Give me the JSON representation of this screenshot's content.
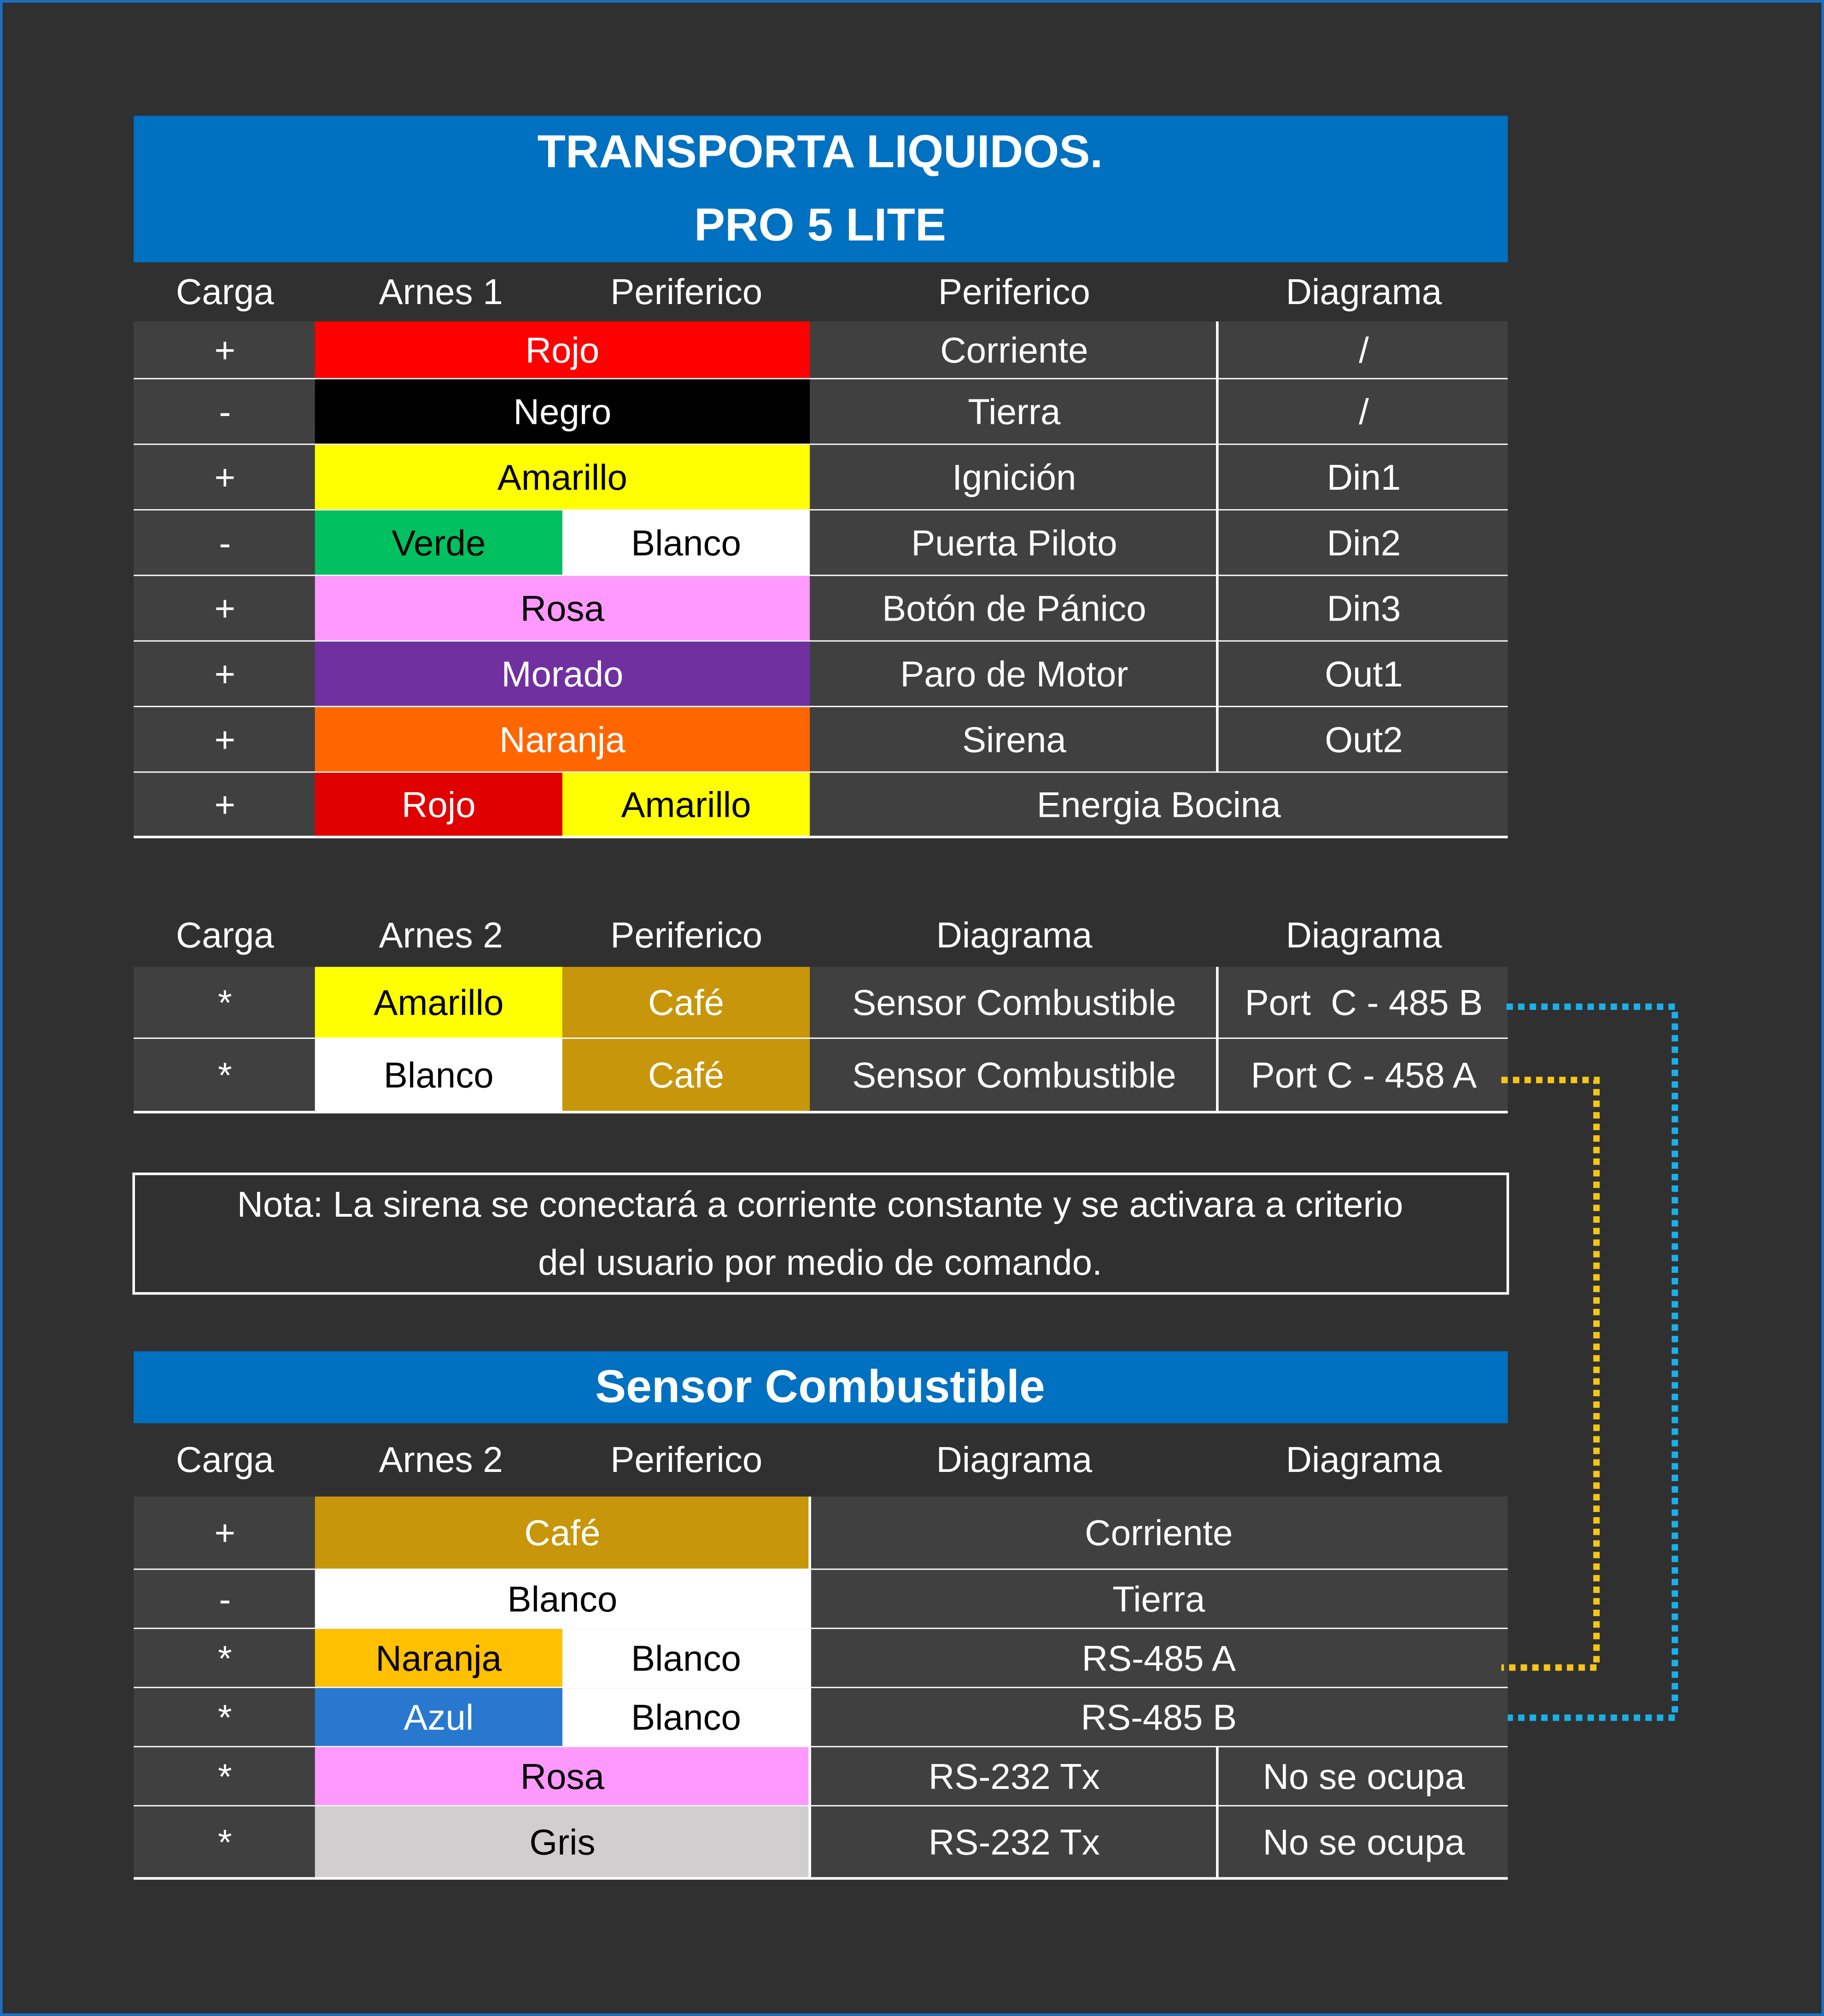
{
  "table1": {
    "title": [
      "TRANSPORTA LIQUIDOS.",
      "PRO 5 LITE"
    ],
    "header": [
      "Carga",
      "Arnes 1",
      "Periferico",
      "Periferico",
      "Diagrama"
    ],
    "rows": [
      {
        "carga": "+",
        "wires": [
          {
            "text": "Rojo",
            "color": "#ff0000",
            "text_color": "#ffffff"
          }
        ],
        "cells": [
          "Corriente",
          "/"
        ]
      },
      {
        "carga": "-",
        "wires": [
          {
            "text": "Negro",
            "color": "#000000",
            "text_color": "#ffffff"
          }
        ],
        "cells": [
          "Tierra",
          "/"
        ]
      },
      {
        "carga": "+",
        "wires": [
          {
            "text": "Amarillo",
            "color": "#ffff00",
            "text_color": "#000000"
          }
        ],
        "cells": [
          "Ignición",
          "Din1"
        ]
      },
      {
        "carga": "-",
        "wires": [
          {
            "text": "Verde",
            "color": "#00c060",
            "text_color": "#000000"
          },
          {
            "text": "Blanco",
            "color": "#ffffff",
            "text_color": "#000000"
          }
        ],
        "cells": [
          "Puerta Piloto",
          "Din2"
        ]
      },
      {
        "carga": "+",
        "wires": [
          {
            "text": "Rosa",
            "color": "#ff99ff",
            "text_color": "#000000"
          }
        ],
        "cells": [
          "Botón de Pánico",
          "Din3"
        ]
      },
      {
        "carga": "+",
        "wires": [
          {
            "text": "Morado",
            "color": "#7030a0",
            "text_color": "#ffffff"
          }
        ],
        "cells": [
          "Paro de Motor",
          "Out1"
        ]
      },
      {
        "carga": "+",
        "wires": [
          {
            "text": "Naranja",
            "color": "#ff6600",
            "text_color": "#ffffff"
          }
        ],
        "cells": [
          "Sirena",
          "Out2"
        ]
      },
      {
        "carga": "+",
        "wires": [
          {
            "text": "Rojo",
            "color": "#e00000",
            "text_color": "#ffffff"
          },
          {
            "text": "Amarillo",
            "color": "#ffff00",
            "text_color": "#000000"
          }
        ],
        "cells": [
          "Energia Bocina"
        ]
      }
    ]
  },
  "table2": {
    "header": [
      "Carga",
      "Arnes 2",
      "Periferico",
      "Diagrama",
      "Diagrama"
    ],
    "rows": [
      {
        "carga": "*",
        "wires": [
          {
            "text": "Amarillo",
            "color": "#ffff00",
            "text_color": "#000000"
          },
          {
            "text": "Café",
            "color": "#c8960a",
            "text_color": "#ffffff"
          }
        ],
        "cells": [
          "Sensor Combustible",
          "Port  C - 485 B"
        ]
      },
      {
        "carga": "*",
        "wires": [
          {
            "text": "Blanco",
            "color": "#ffffff",
            "text_color": "#000000"
          },
          {
            "text": "Café",
            "color": "#c8960a",
            "text_color": "#ffffff"
          }
        ],
        "cells": [
          "Sensor Combustible",
          "Port C - 458 A"
        ]
      }
    ]
  },
  "note": [
    "Nota: La sirena se conectará a corriente constante y se activara a criterio",
    "del usuario por medio de comando."
  ],
  "table3": {
    "title": [
      "Sensor Combustible"
    ],
    "header": [
      "Carga",
      "Arnes 2",
      "Periferico",
      "Diagrama",
      "Diagrama"
    ],
    "rows": [
      {
        "carga": "+",
        "wires": [
          {
            "text": "Café",
            "color": "#c8960a",
            "text_color": "#ffffff"
          }
        ],
        "cells": [
          "Corriente"
        ]
      },
      {
        "carga": "-",
        "wires": [
          {
            "text": "Blanco",
            "color": "#ffffff",
            "text_color": "#000000"
          }
        ],
        "cells": [
          "Tierra"
        ]
      },
      {
        "carga": "*",
        "wires": [
          {
            "text": "Naranja",
            "color": "#ffc000",
            "text_color": "#000000"
          },
          {
            "text": "Blanco",
            "color": "#ffffff",
            "text_color": "#000000"
          }
        ],
        "cells": [
          "RS-485 A"
        ]
      },
      {
        "carga": "*",
        "wires": [
          {
            "text": "Azul",
            "color": "#2878d0",
            "text_color": "#ffffff"
          },
          {
            "text": "Blanco",
            "color": "#ffffff",
            "text_color": "#000000"
          }
        ],
        "cells": [
          "RS-485 B"
        ]
      },
      {
        "carga": "*",
        "wires": [
          {
            "text": "Rosa",
            "color": "#ff99ff",
            "text_color": "#000000"
          }
        ],
        "cells": [
          "RS-232 Tx",
          "No se ocupa"
        ]
      },
      {
        "carga": "*",
        "wires": [
          {
            "text": "Gris",
            "color": "#d0cece",
            "text_color": "#000000"
          }
        ],
        "cells": [
          "RS-232 Tx",
          "No se ocupa"
        ]
      }
    ]
  }
}
